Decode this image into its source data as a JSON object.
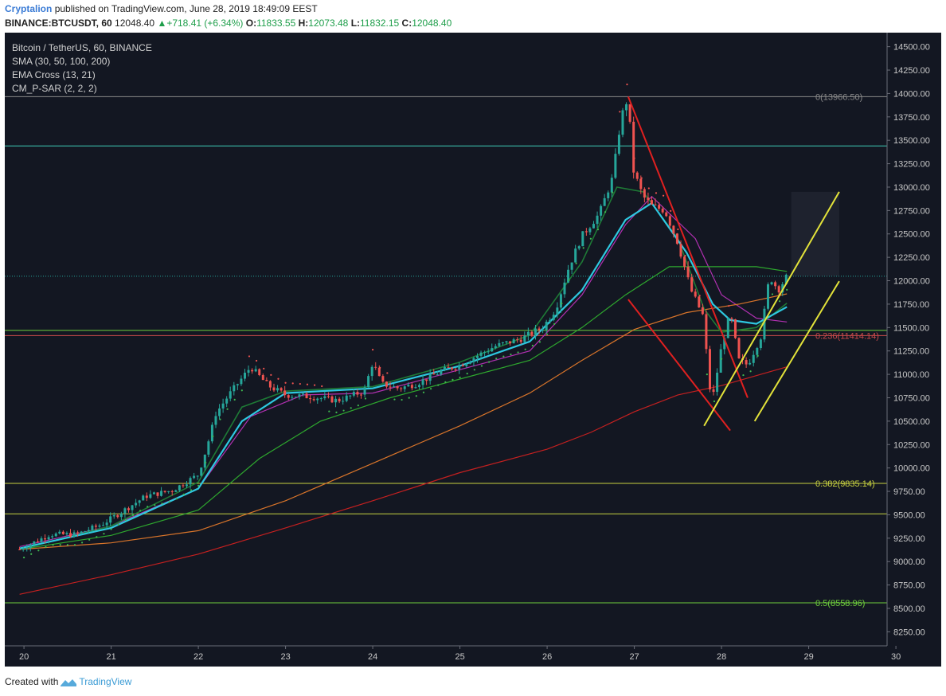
{
  "header": {
    "author": "Cryptalion",
    "published": "published on TradingView.com, June 28, 2019 18:49:09 EEST",
    "symbol": "BINANCE:BTCUSDT, 60",
    "last": "12048.40",
    "change": "+718.41 (+6.34%)",
    "change_arrow": "▲",
    "open_label": "O:",
    "open": "11833.55",
    "high_label": "H:",
    "high": "12073.48",
    "low_label": "L:",
    "low": "11832.15",
    "close_label": "C:",
    "close": "12048.40"
  },
  "legend": {
    "title": "Bitcoin / TetherUS, 60, BINANCE",
    "sma": "SMA (30, 50, 100, 200)",
    "ema": "EMA Cross (13, 21)",
    "psar": "CM_P-SAR (2, 2, 2)"
  },
  "footer": {
    "created": "Created with",
    "brand": "TradingView"
  },
  "colors": {
    "bg": "#131722",
    "up": "#26a69a",
    "down": "#ef5350",
    "ema13": "#1e7a36",
    "ema21": "#2ec8e0",
    "sma30": "#b030b0",
    "sma50": "#2ea82e",
    "sma100": "#d8742a",
    "sma200": "#c42020",
    "psar": "#3fb950",
    "fib0": "#8a8a8a",
    "fib236": "#c84a4a",
    "fib382": "#c8d240",
    "fib5": "#6fcf3c",
    "hline_teal": "#3ec9b5",
    "channel_red": "#e02020",
    "channel_yellow": "#e3e33a",
    "axis_text": "#c8c8c8"
  },
  "chart_data": {
    "type": "candlestick",
    "title": "Bitcoin / TetherUS, 60, BINANCE",
    "ylim": [
      8100,
      14650
    ],
    "x_axis": {
      "ticks": [
        "20",
        "21",
        "22",
        "23",
        "24",
        "25",
        "26",
        "27",
        "28",
        "29",
        "30"
      ],
      "range_days": [
        19.9,
        30.1
      ]
    },
    "y_ticks": [
      8250,
      8500,
      8750,
      9000,
      9250,
      9500,
      9750,
      10000,
      10250,
      10500,
      10750,
      11000,
      11250,
      11500,
      11750,
      12000,
      12250,
      12500,
      12750,
      13000,
      13250,
      13500,
      13750,
      14000,
      14250,
      14500
    ],
    "price_path": [
      [
        19.95,
        9130
      ],
      [
        20.3,
        9290
      ],
      [
        20.6,
        9290
      ],
      [
        20.9,
        9400
      ],
      [
        21.1,
        9520
      ],
      [
        21.4,
        9700
      ],
      [
        21.7,
        9760
      ],
      [
        22.0,
        9930
      ],
      [
        22.1,
        10230
      ],
      [
        22.2,
        10580
      ],
      [
        22.35,
        10780
      ],
      [
        22.6,
        11080
      ],
      [
        22.8,
        10880
      ],
      [
        23.0,
        10780
      ],
      [
        23.3,
        10760
      ],
      [
        23.6,
        10720
      ],
      [
        23.9,
        10820
      ],
      [
        24.0,
        11130
      ],
      [
        24.1,
        10900
      ],
      [
        24.3,
        10850
      ],
      [
        24.5,
        10900
      ],
      [
        24.8,
        11040
      ],
      [
        25.0,
        11100
      ],
      [
        25.2,
        11200
      ],
      [
        25.4,
        11300
      ],
      [
        25.7,
        11380
      ],
      [
        25.95,
        11500
      ],
      [
        26.1,
        11700
      ],
      [
        26.25,
        12150
      ],
      [
        26.4,
        12480
      ],
      [
        26.6,
        12720
      ],
      [
        26.75,
        13100
      ],
      [
        26.85,
        13750
      ],
      [
        26.93,
        13966
      ],
      [
        26.98,
        13200
      ],
      [
        27.1,
        12900
      ],
      [
        27.2,
        12800
      ],
      [
        27.35,
        12750
      ],
      [
        27.5,
        12400
      ],
      [
        27.65,
        11900
      ],
      [
        27.8,
        11600
      ],
      [
        27.85,
        10900
      ],
      [
        27.9,
        10750
      ],
      [
        28.0,
        11300
      ],
      [
        28.1,
        11650
      ],
      [
        28.2,
        11150
      ],
      [
        28.3,
        11100
      ],
      [
        28.45,
        11400
      ],
      [
        28.55,
        12050
      ],
      [
        28.65,
        11900
      ],
      [
        28.75,
        12048
      ]
    ],
    "moving_averages": {
      "SMA30": [
        [
          19.95,
          9160
        ],
        [
          21.0,
          9380
        ],
        [
          22.0,
          9780
        ],
        [
          22.6,
          10550
        ],
        [
          23.2,
          10780
        ],
        [
          24.0,
          10800
        ],
        [
          25.0,
          11050
        ],
        [
          25.8,
          11250
        ],
        [
          26.4,
          11850
        ],
        [
          26.9,
          12600
        ],
        [
          27.2,
          12900
        ],
        [
          27.7,
          12450
        ],
        [
          28.0,
          11850
        ],
        [
          28.4,
          11600
        ],
        [
          28.75,
          11560
        ]
      ],
      "SMA50": [
        [
          19.95,
          9130
        ],
        [
          21.0,
          9280
        ],
        [
          22.0,
          9550
        ],
        [
          22.7,
          10100
        ],
        [
          23.4,
          10500
        ],
        [
          24.2,
          10750
        ],
        [
          25.0,
          10950
        ],
        [
          25.8,
          11150
        ],
        [
          26.4,
          11500
        ],
        [
          26.9,
          11850
        ],
        [
          27.4,
          12150
        ],
        [
          27.9,
          12150
        ],
        [
          28.4,
          12150
        ],
        [
          28.75,
          12100
        ]
      ],
      "SMA100": [
        [
          19.95,
          9130
        ],
        [
          21.0,
          9200
        ],
        [
          22.0,
          9330
        ],
        [
          23.0,
          9650
        ],
        [
          24.0,
          10050
        ],
        [
          25.0,
          10450
        ],
        [
          25.8,
          10800
        ],
        [
          26.4,
          11150
        ],
        [
          27.0,
          11480
        ],
        [
          27.6,
          11660
        ],
        [
          28.2,
          11750
        ],
        [
          28.75,
          11860
        ]
      ],
      "SMA200": [
        [
          19.95,
          8650
        ],
        [
          21.0,
          8860
        ],
        [
          22.0,
          9080
        ],
        [
          23.0,
          9360
        ],
        [
          24.0,
          9650
        ],
        [
          25.0,
          9950
        ],
        [
          26.0,
          10200
        ],
        [
          26.5,
          10380
        ],
        [
          27.0,
          10600
        ],
        [
          27.5,
          10780
        ],
        [
          28.0,
          10880
        ],
        [
          28.75,
          11080
        ]
      ],
      "EMA13": [
        [
          19.95,
          9130
        ],
        [
          21.0,
          9380
        ],
        [
          22.0,
          9850
        ],
        [
          22.5,
          10650
        ],
        [
          23.0,
          10820
        ],
        [
          24.0,
          10870
        ],
        [
          25.0,
          11130
        ],
        [
          25.8,
          11420
        ],
        [
          26.4,
          12200
        ],
        [
          26.8,
          13000
        ],
        [
          27.1,
          12950
        ],
        [
          27.5,
          12450
        ],
        [
          27.8,
          11700
        ],
        [
          28.0,
          11450
        ],
        [
          28.4,
          11500
        ],
        [
          28.75,
          11760
        ]
      ],
      "EMA21": [
        [
          19.95,
          9140
        ],
        [
          21.0,
          9360
        ],
        [
          22.0,
          9780
        ],
        [
          22.5,
          10500
        ],
        [
          23.0,
          10800
        ],
        [
          24.0,
          10850
        ],
        [
          25.0,
          11090
        ],
        [
          25.8,
          11350
        ],
        [
          26.4,
          11900
        ],
        [
          26.9,
          12650
        ],
        [
          27.2,
          12830
        ],
        [
          27.6,
          12300
        ],
        [
          27.9,
          11750
        ],
        [
          28.1,
          11580
        ],
        [
          28.4,
          11540
        ],
        [
          28.75,
          11720
        ]
      ]
    },
    "fibonacci_levels": [
      {
        "label": "0(13966.50)",
        "value": 13966.5
      },
      {
        "label": "0.236(11414.14)",
        "value": 11414.14
      },
      {
        "label": "0.382(9835.14)",
        "value": 9835.14
      },
      {
        "label": "0.5(8558.96)",
        "value": 8558.96
      }
    ],
    "horizontal_lines": [
      13440,
      11470,
      9510
    ],
    "last_price": 12048.4,
    "red_channel": [
      [
        [
          26.93,
          13966
        ],
        [
          28.3,
          10750
        ]
      ],
      [
        [
          26.93,
          11800
        ],
        [
          28.1,
          10400
        ]
      ]
    ],
    "yellow_channel": [
      [
        [
          27.8,
          10450
        ],
        [
          29.35,
          12950
        ]
      ],
      [
        [
          28.38,
          10500
        ],
        [
          29.35,
          11995
        ]
      ]
    ]
  }
}
